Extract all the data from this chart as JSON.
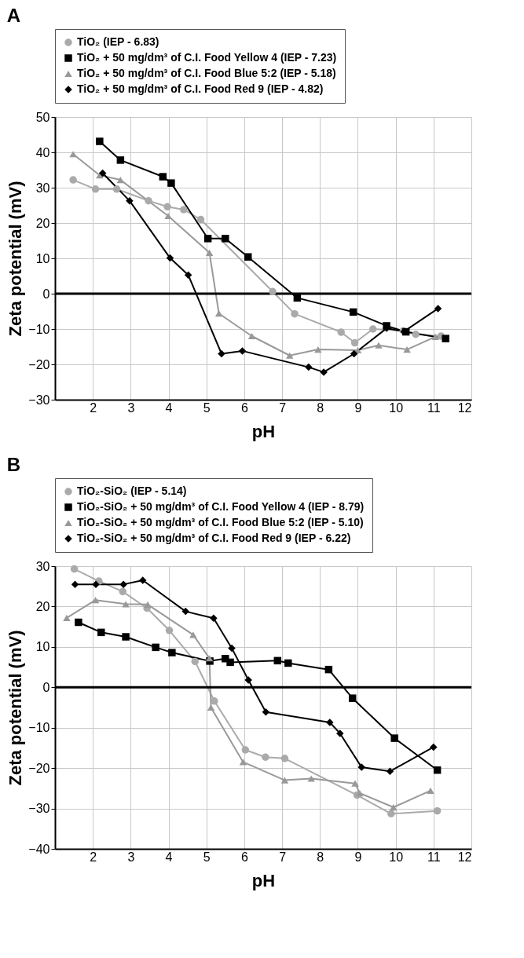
{
  "chart_data": [
    {
      "type": "line",
      "title": "A",
      "xlabel": "pH",
      "ylabel": "Zeta potential (mV)",
      "xlim": [
        1,
        12
      ],
      "xticks": [
        2,
        3,
        4,
        5,
        6,
        7,
        8,
        9,
        10,
        11,
        12
      ],
      "ylim": [
        -30,
        50
      ],
      "yticks": [
        -30,
        -20,
        -10,
        0,
        10,
        20,
        30,
        40,
        50
      ],
      "grid": true,
      "legend": "top",
      "ref_lines": [
        {
          "axis": "y",
          "value": 0,
          "color": "#000000"
        }
      ],
      "series": [
        {
          "name": "TiO₂ (IEP - 6.83)",
          "color": "#aaaaaa",
          "marker": "circle",
          "x": [
            1.48,
            2.07,
            2.63,
            3.47,
            3.97,
            4.4,
            4.85,
            6.75,
            7.33,
            8.56,
            8.92,
            9.4,
            10.2,
            10.53,
            11.2
          ],
          "values": [
            32.2,
            29.6,
            29.6,
            26.3,
            24.6,
            23.8,
            21,
            0.6,
            -5.7,
            -10.9,
            -13.9,
            -10,
            -10.5,
            -11.5,
            -12
          ]
        },
        {
          "name": "TiO₂ + 50 mg/dm³ of C.I. Food Yellow 4 (IEP - 7.23)",
          "color": "#000000",
          "marker": "square",
          "x": [
            2.18,
            2.73,
            3.85,
            4.07,
            5.04,
            5.5,
            6.1,
            7.4,
            8.88,
            9.76,
            10.27,
            11.32
          ],
          "values": [
            43.1,
            37.8,
            33.1,
            31.3,
            15.6,
            15.6,
            10.4,
            -1.2,
            -5.2,
            -9.1,
            -10.8,
            -12.7
          ]
        },
        {
          "name": "TiO₂ + 50 mg/dm³ of C.I. Food Blue 5:2 (IEP - 5.18)",
          "color": "#999999",
          "marker": "triangle",
          "x": [
            1.48,
            2.18,
            2.73,
            3.99,
            5.08,
            5.33,
            6.2,
            7.2,
            7.95,
            9.0,
            9.55,
            10.3,
            11.05
          ],
          "values": [
            39.5,
            33.5,
            32.2,
            22,
            11.6,
            -5.6,
            -12,
            -17.5,
            -15.8,
            -16,
            -14.6,
            -15.8,
            -12.2
          ]
        },
        {
          "name": "TiO₂ + 50 mg/dm³ of C.I. Food Red 9 (IEP - 4.82)",
          "color": "#000000",
          "marker": "diamond",
          "x": [
            2.26,
            2.97,
            4.04,
            4.52,
            5.4,
            5.95,
            7.7,
            8.1,
            8.9,
            9.76,
            10.22,
            11.12
          ],
          "values": [
            34.1,
            26.3,
            10.1,
            5.3,
            -17,
            -16.2,
            -20.8,
            -22.2,
            -17,
            -9.8,
            -10.7,
            -4.2
          ]
        }
      ]
    },
    {
      "type": "line",
      "title": "B",
      "xlabel": "pH",
      "ylabel": "Zeta potential (mV)",
      "xlim": [
        1,
        12
      ],
      "xticks": [
        2,
        3,
        4,
        5,
        6,
        7,
        8,
        9,
        10,
        11,
        12
      ],
      "ylim": [
        -40,
        30
      ],
      "yticks": [
        -40,
        -30,
        -20,
        -10,
        0,
        10,
        20,
        30
      ],
      "grid": true,
      "legend": "top",
      "ref_lines": [
        {
          "axis": "y",
          "value": 0,
          "color": "#000000"
        }
      ],
      "series": [
        {
          "name": "TiO₂-SiO₂ (IEP - 5.14)",
          "color": "#aaaaaa",
          "marker": "circle",
          "x": [
            1.51,
            2.16,
            2.79,
            3.43,
            4.02,
            4.7,
            5.21,
            6.03,
            6.56,
            7.07,
            8.98,
            9.88,
            11.1
          ],
          "values": [
            29.3,
            26.3,
            23.7,
            19.6,
            14.1,
            6.4,
            -3.4,
            -15.5,
            -17.3,
            -17.6,
            -26.7,
            -31.3,
            -30.6
          ]
        },
        {
          "name": "TiO₂-SiO₂ + 50 mg/dm³ of C.I. Food Yellow 4 (IEP - 8.79)",
          "color": "#000000",
          "marker": "square",
          "x": [
            1.62,
            2.22,
            2.87,
            3.66,
            4.09,
            5.09,
            5.5,
            5.63,
            6.88,
            7.16,
            8.23,
            8.86,
            9.97,
            11.1
          ],
          "values": [
            16.1,
            13.6,
            12.5,
            9.9,
            8.6,
            6.5,
            7.1,
            6.2,
            6.6,
            6.0,
            4.4,
            -2.7,
            -12.6,
            -20.5
          ]
        },
        {
          "name": "TiO₂-SiO₂ + 50 mg/dm³ of C.I. Food Blue 5:2 (IEP - 5.10)",
          "color": "#999999",
          "marker": "triangle",
          "x": [
            1.31,
            2.07,
            2.87,
            3.45,
            4.65,
            5.08,
            5.12,
            5.97,
            7.07,
            7.77,
            8.93,
            9.05,
            9.94,
            10.92
          ],
          "values": [
            17.2,
            21.6,
            20.6,
            20.5,
            13,
            7.2,
            -5,
            -18.5,
            -23,
            -22.6,
            -23.8,
            -26.2,
            -29.7,
            -25.6
          ]
        },
        {
          "name": "TiO₂-SiO₂ + 50 mg/dm³ of C.I. Food Red 9 (IEP - 6.22)",
          "color": "#000000",
          "marker": "diamond",
          "x": [
            1.53,
            2.08,
            2.81,
            3.32,
            4.45,
            5.19,
            5.67,
            6.11,
            6.57,
            8.26,
            8.53,
            9.1,
            9.85,
            11.0
          ],
          "values": [
            25.5,
            25.5,
            25.5,
            26.5,
            18.8,
            17.1,
            9.7,
            1.8,
            -6.1,
            -8.7,
            -11.4,
            -19.8,
            -20.8,
            -14.8
          ]
        }
      ]
    }
  ]
}
